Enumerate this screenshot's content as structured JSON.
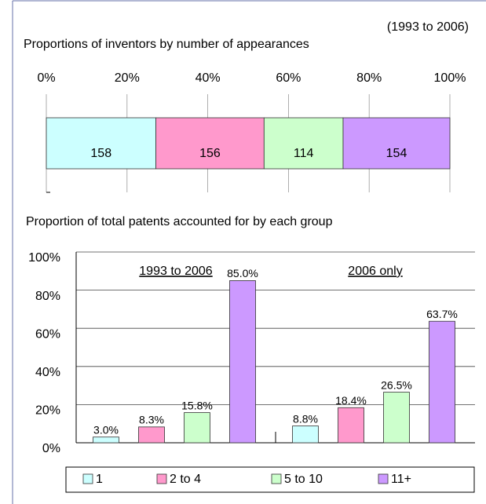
{
  "chart_data": [
    {
      "type": "bar",
      "orientation": "horizontal",
      "stacked": "percent",
      "title": "Proportions of inventors by number of appearances",
      "subtitle": "(1993 to 2006)",
      "xlim": [
        0,
        100
      ],
      "xticks": [
        {
          "value": 0,
          "label": "0%"
        },
        {
          "value": 20,
          "label": "20%"
        },
        {
          "value": 40,
          "label": "40%"
        },
        {
          "value": 60,
          "label": "60%"
        },
        {
          "value": 80,
          "label": "80%"
        },
        {
          "value": 100,
          "label": "100%"
        }
      ],
      "grid": true,
      "series": [
        {
          "color": "#ccffff",
          "values": [
            158
          ]
        },
        {
          "color": "#ff99cc",
          "values": [
            156
          ]
        },
        {
          "color": "#ccffcc",
          "values": [
            114
          ]
        },
        {
          "color": "#cc99ff",
          "values": [
            154
          ]
        }
      ]
    },
    {
      "type": "bar",
      "title": "Proportion of total patents accounted for by each group",
      "categories": [
        "1993 to 2006",
        "2006 only"
      ],
      "ylim": [
        0,
        100
      ],
      "yticks": [
        {
          "value": 0,
          "label": "0%"
        },
        {
          "value": 20,
          "label": "20%"
        },
        {
          "value": 40,
          "label": "40%"
        },
        {
          "value": 60,
          "label": "60%"
        },
        {
          "value": 80,
          "label": "80%"
        },
        {
          "value": 100,
          "label": "100%"
        }
      ],
      "grid": true,
      "legend": "bottom",
      "series": [
        {
          "name": "1",
          "color": "#ccffff",
          "values": [
            3.0,
            8.8
          ],
          "value_labels": [
            "3.0%",
            "8.8%"
          ]
        },
        {
          "name": "2 to 4",
          "color": "#ff99cc",
          "values": [
            8.3,
            18.4
          ],
          "value_labels": [
            "8.3%",
            "18.4%"
          ]
        },
        {
          "name": "5 to 10",
          "color": "#ccffcc",
          "values": [
            15.8,
            26.5
          ],
          "value_labels": [
            "15.8%",
            "26.5%"
          ]
        },
        {
          "name": "11+",
          "color": "#cc99ff",
          "values": [
            85.0,
            63.7
          ],
          "value_labels": [
            "85.0%",
            "63.7%"
          ]
        }
      ]
    }
  ]
}
